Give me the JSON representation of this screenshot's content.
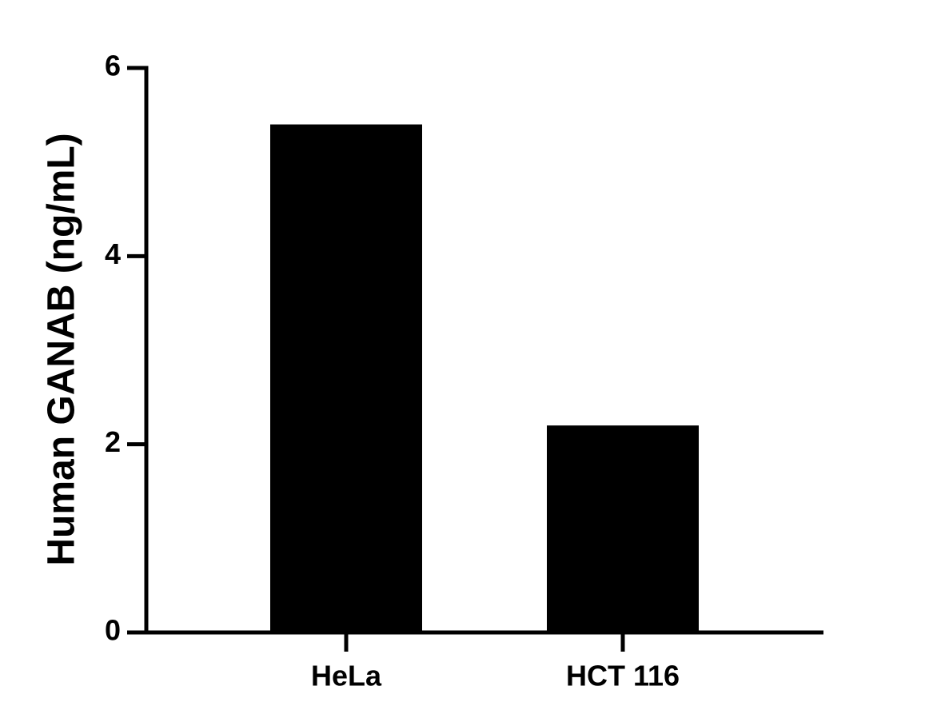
{
  "chart_data": {
    "type": "bar",
    "y_label": "Human GANAB (ng/mL)",
    "categories": [
      "HeLa",
      "HCT 116"
    ],
    "values": [
      5.4,
      2.2
    ],
    "color": "#000000",
    "ylim": [
      0,
      6
    ],
    "yticks": [
      0,
      2,
      4,
      6
    ],
    "grid": false
  }
}
